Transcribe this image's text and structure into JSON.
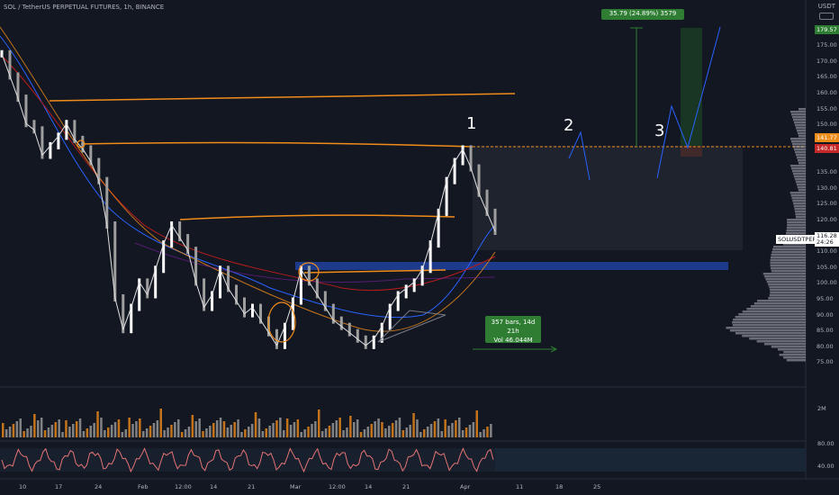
{
  "header": {
    "symbol_line": "SOL / TetherUS PERPETUAL FUTURES, 1h, BINANCE",
    "currency": "USDT"
  },
  "price_axis": {
    "ticks": [
      "175.00",
      "170.00",
      "165.00",
      "160.00",
      "155.00",
      "150.00",
      "145.00",
      "135.00",
      "130.00",
      "125.00",
      "120.00",
      "115.00",
      "110.00",
      "105.00",
      "100.00",
      "95.00",
      "90.00",
      "85.00",
      "80.00",
      "75.00"
    ],
    "ymin": 72,
    "ymax": 185
  },
  "tags": {
    "top_green": "179.57",
    "orange_1": "141.77",
    "red_1": "140.81",
    "symbol": "SOLUSDTPERP",
    "last_price": "116.28",
    "countdown": "24:26"
  },
  "volume_axis": {
    "label": "2M"
  },
  "rsi_axis": {
    "top": "80.00",
    "bottom": "40.00"
  },
  "time_axis": {
    "labels": [
      "10",
      "17",
      "24",
      "Feb",
      "12:00",
      "14",
      "21",
      "Mar",
      "12:00",
      "14",
      "21",
      "Apr",
      "11",
      "18",
      "25"
    ]
  },
  "annotations": {
    "wave_1": "1",
    "wave_2": "2",
    "wave_3": "3"
  },
  "measure_top": "35.79 (24.89%) 3579",
  "measure_range": {
    "line1": "357 bars, 14d 21h",
    "line2": "Vol 46.044M"
  },
  "colors": {
    "bg": "#131722",
    "orange": "#f08c1a",
    "blue": "#1e3a8a",
    "green": "#2e7d32",
    "ema_blue": "#2962ff",
    "ema_red": "#b71c1c"
  },
  "chart_data": {
    "type": "candlestick",
    "series": [
      {
        "values": [
          172,
          165,
          158,
          150,
          148,
          140,
          143,
          146,
          150,
          145,
          142,
          138,
          132,
          118,
          95,
          85,
          92,
          100,
          96,
          104,
          112,
          118,
          114,
          110,
          100,
          92,
          96,
          104,
          98,
          94,
          90,
          92,
          88,
          84,
          80,
          86,
          94,
          104,
          100,
          96,
          92,
          88,
          86,
          84,
          82,
          80,
          82,
          86,
          92,
          96,
          98,
          100,
          104,
          112,
          122,
          132,
          138,
          142,
          136,
          128,
          122,
          116
        ]
      }
    ]
  }
}
